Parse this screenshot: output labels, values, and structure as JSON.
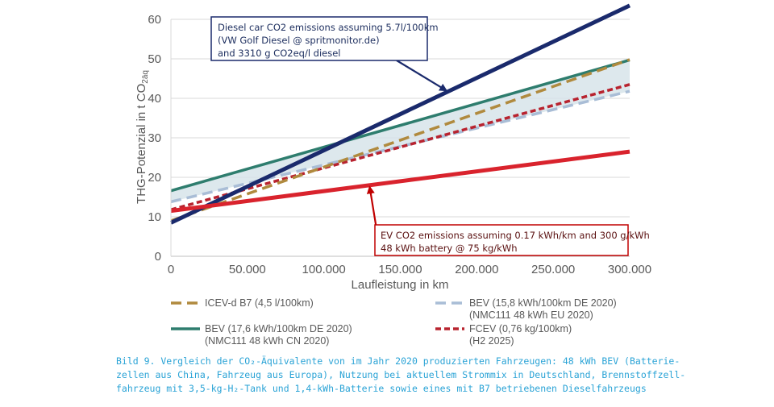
{
  "chart_data": {
    "type": "line",
    "xlabel": "Laufleistung in km",
    "ylabel_main": "THG-Potenzial in t CO",
    "ylabel_sub": "2äq",
    "xlim": [
      0,
      300000
    ],
    "ylim": [
      0,
      60
    ],
    "x_ticks": [
      "0",
      "50.000",
      "100.000",
      "150.000",
      "200.000",
      "250.000",
      "300.000"
    ],
    "y_ticks": [
      "0",
      "10",
      "20",
      "30",
      "40",
      "50",
      "60"
    ],
    "grid": "horizontal",
    "shaded_band": {
      "between": [
        "BEV (17,6 kWh/100km DE 2020)",
        "BEV (15,8 kWh/100km DE 2020)"
      ],
      "color": "#d5e2e8"
    },
    "series": [
      {
        "name": "BEV (17,6 kWh/100km DE 2020)",
        "name_line2": "(NMC111 48 kWh CN 2020)",
        "color": "#2e7d6e",
        "style": "solid",
        "x": [
          0,
          300000
        ],
        "y": [
          16.6,
          49.7
        ]
      },
      {
        "name": "BEV (15,8 kWh/100km DE 2020)",
        "name_line2": "(NMC111 48 kWh EU 2020)",
        "color": "#a9bdd6",
        "style": "dash",
        "x": [
          0,
          300000
        ],
        "y": [
          13.8,
          41.8
        ]
      },
      {
        "name": "FCEV (0,76 kg/100km)",
        "name_line2": "(H2 2025)",
        "color": "#b8232f",
        "style": "dot",
        "x": [
          0,
          300000
        ],
        "y": [
          11.8,
          43.5
        ]
      },
      {
        "name": "ICEV-d B7 (4,5 l/100km)",
        "name_line2": "",
        "color": "#b08a3e",
        "style": "dash",
        "x": [
          0,
          300000
        ],
        "y": [
          9.0,
          49.8
        ]
      },
      {
        "name": "",
        "color": "#1a2a6c",
        "style": "solid-thick",
        "x": [
          0,
          300000
        ],
        "y": [
          8.5,
          63.5
        ]
      },
      {
        "name": "",
        "color": "#d9232d",
        "style": "solid-thick",
        "x": [
          0,
          300000
        ],
        "y": [
          11.5,
          26.5
        ]
      }
    ],
    "legend_order": [
      3,
      1,
      0,
      2
    ],
    "annotations": [
      {
        "id": "diesel",
        "lines": [
          "Diesel car CO2 emissions assuming 5.7l/100km",
          "(VW Golf Diesel @ spritmonitor.de)",
          "and 3310 g CO2eq/l diesel"
        ],
        "color": "#1a2a6c",
        "arrow_to": [
          180000,
          42
        ]
      },
      {
        "id": "ev",
        "lines": [
          "EV CO2 emissions assuming 0.17 kWh/km and 300 g/kWh",
          "48 kWh battery @ 75 kg/kWh"
        ],
        "color": "#c00000",
        "arrow_to": [
          130000,
          17.5
        ]
      }
    ]
  },
  "caption": {
    "lines": [
      "Bild 9. Vergleich der CO₂-Äquivalente von im Jahr 2020 produzierten Fahrzeugen: 48 kWh BEV (Batterie-",
      "zellen aus China, Fahrzeug aus Europa), Nutzung bei aktuellem Strommix in Deutschland, Brennstoffzell-",
      "fahrzeug mit 3,5-kg-H₂-Tank und 1,4-kWh-Batterie sowie eines mit B7 betriebenen Dieselfahrzeugs"
    ]
  }
}
